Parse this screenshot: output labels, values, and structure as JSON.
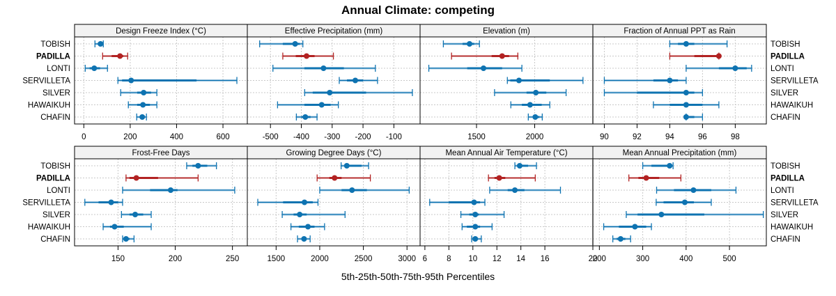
{
  "chart_data": {
    "type": "dotplot-intervals",
    "title": "Annual Climate: competing",
    "xlabel": "5th-25th-50th-75th-95th Percentiles",
    "colors": {
      "default": "#0e73b1",
      "highlight": "#b22222",
      "strip_bg": "#f2f2f2",
      "grid": "#c8c8c8"
    },
    "sites": [
      "TOBISH",
      "PADILLA",
      "LONTI",
      "SERVILLETA",
      "SILVER",
      "HAWAIKUH",
      "CHAFIN"
    ],
    "highlight_site": "PADILLA",
    "panels": [
      {
        "title": "Design Freeze Index (°C)",
        "xlim": [
          -40,
          705
        ],
        "ticks": [
          0,
          200,
          400,
          600
        ],
        "data": [
          [
            48,
            60,
            72,
            78,
            84
          ],
          [
            81,
            120,
            156,
            170,
            189
          ],
          [
            6,
            25,
            45,
            70,
            102
          ],
          [
            147,
            165,
            204,
            486,
            660
          ],
          [
            159,
            230,
            258,
            290,
            315
          ],
          [
            192,
            230,
            255,
            285,
            315
          ],
          [
            228,
            240,
            252,
            262,
            270
          ]
        ]
      },
      {
        "title": "Effective Precipitation (mm)",
        "xlim": [
          -575,
          -15
        ],
        "ticks": [
          -500,
          -400,
          -300,
          -200,
          -100
        ],
        "data": [
          [
            -535,
            -460,
            -420,
            -405,
            -395
          ],
          [
            -460,
            -418,
            -383,
            -357,
            -296
          ],
          [
            -492,
            -390,
            -328,
            -262,
            -160
          ],
          [
            -277,
            -252,
            -225,
            -200,
            -153
          ],
          [
            -389,
            -363,
            -308,
            -190,
            -40
          ],
          [
            -477,
            -390,
            -334,
            -305,
            -280
          ],
          [
            -416,
            -400,
            -387,
            -370,
            -349
          ]
        ]
      },
      {
        "title": "Elevation (m)",
        "xlim": [
          1015,
          2500
        ],
        "ticks": [
          1500,
          2000
        ],
        "data": [
          [
            1215,
            1380,
            1440,
            1480,
            1525
          ],
          [
            1285,
            1630,
            1720,
            1780,
            1855
          ],
          [
            1090,
            1420,
            1560,
            1720,
            1890
          ],
          [
            1765,
            1790,
            1865,
            2130,
            2415
          ],
          [
            1655,
            1930,
            2010,
            2100,
            2270
          ],
          [
            1795,
            1890,
            1960,
            2060,
            2130
          ],
          [
            1945,
            1990,
            2005,
            2040,
            2065
          ]
        ]
      },
      {
        "title": "Fraction of Annual PPT as Rain",
        "xlim": [
          89.3,
          99.9
        ],
        "ticks": [
          90,
          92,
          94,
          96,
          98
        ],
        "data": [
          [
            94,
            94.5,
            95,
            95.5,
            97.5
          ],
          [
            94,
            95.5,
            97,
            97,
            97
          ],
          [
            95,
            97,
            98,
            98.7,
            99
          ],
          [
            90,
            93,
            94,
            94.5,
            95
          ],
          [
            90,
            92,
            95,
            95.5,
            96
          ],
          [
            93,
            94,
            95,
            96,
            97
          ],
          [
            95,
            95,
            95,
            95.5,
            96
          ]
        ]
      },
      {
        "title": "Frost-Free Days",
        "xlim": [
          112,
          263
        ],
        "ticks": [
          150,
          200,
          250
        ],
        "data": [
          [
            210,
            215,
            220,
            228,
            236
          ],
          [
            157,
            160,
            166,
            185,
            220
          ],
          [
            154,
            178,
            196,
            202,
            252
          ],
          [
            121,
            133,
            144,
            150,
            154
          ],
          [
            153,
            160,
            165,
            172,
            179
          ],
          [
            137,
            143,
            147,
            155,
            179
          ],
          [
            154,
            155,
            157,
            160,
            164
          ]
        ]
      },
      {
        "title": "Growing Degree Days (°C)",
        "xlim": [
          1170,
          3150
        ],
        "ticks": [
          1500,
          2000,
          2500,
          3000
        ],
        "data": [
          [
            2245,
            2280,
            2310,
            2480,
            2560
          ],
          [
            1970,
            2110,
            2170,
            2250,
            2580
          ],
          [
            2000,
            2250,
            2370,
            2540,
            3025
          ],
          [
            1290,
            1580,
            1825,
            1920,
            1980
          ],
          [
            1570,
            1700,
            1770,
            1850,
            2290
          ],
          [
            1670,
            1760,
            1865,
            1940,
            2055
          ],
          [
            1745,
            1790,
            1820,
            1840,
            1890
          ]
        ]
      },
      {
        "title": "Mean Annual Air Temperature (°C)",
        "xlim": [
          5.6,
          20.0
        ],
        "ticks": [
          6,
          8,
          10,
          12,
          14,
          16,
          20
        ],
        "data": [
          [
            13.5,
            13.7,
            13.9,
            14.6,
            15.3
          ],
          [
            11.3,
            11.8,
            12.2,
            12.7,
            15.2
          ],
          [
            11.4,
            12.9,
            13.5,
            14.3,
            17.3
          ],
          [
            6.4,
            8.0,
            10.1,
            10.6,
            11.0
          ],
          [
            9.0,
            9.7,
            10.2,
            10.5,
            12.6
          ],
          [
            9.1,
            9.5,
            10.2,
            10.6,
            11.6
          ],
          [
            9.9,
            10.0,
            10.2,
            10.4,
            10.7
          ]
        ]
      },
      {
        "title": "Mean Annual Precipitation (mm)",
        "xlim": [
          185,
          585
        ],
        "ticks": [
          200,
          300,
          400,
          500
        ],
        "data": [
          [
            300,
            320,
            362,
            368,
            370
          ],
          [
            268,
            290,
            308,
            338,
            388
          ],
          [
            332,
            372,
            417,
            458,
            515
          ],
          [
            331,
            348,
            397,
            418,
            458
          ],
          [
            262,
            288,
            343,
            442,
            578
          ],
          [
            210,
            245,
            282,
            308,
            320
          ],
          [
            231,
            240,
            249,
            260,
            272
          ]
        ]
      }
    ]
  }
}
